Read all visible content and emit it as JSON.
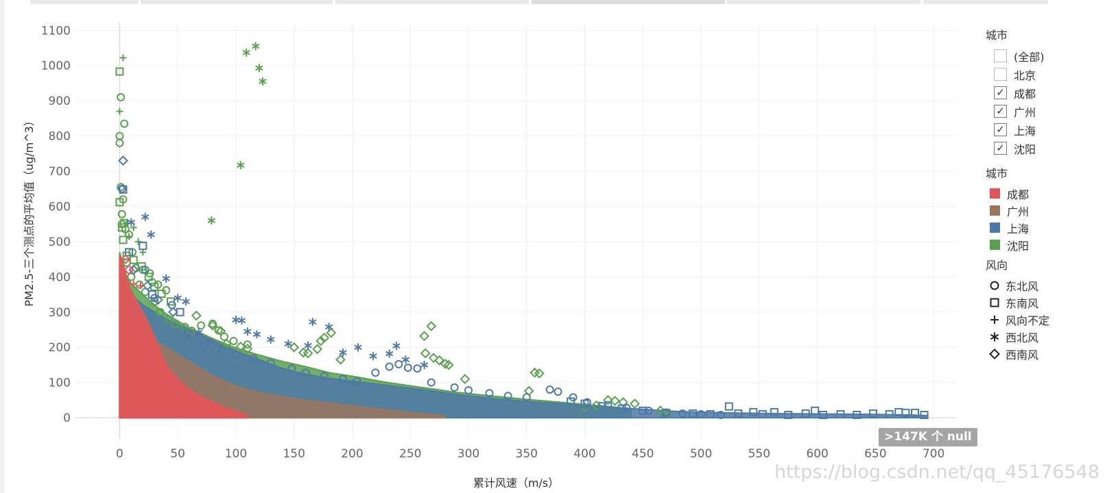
{
  "chart_data": {
    "type": "scatter",
    "title": "",
    "xlabel": "累计风速（m/s）",
    "ylabel": "PM2.5-三个测点的平均值（ug/m^3）",
    "xlim": [
      -38,
      720
    ],
    "ylim": [
      -62,
      1120
    ],
    "x_ticks": [
      0,
      50,
      100,
      150,
      200,
      250,
      300,
      350,
      400,
      450,
      500,
      550,
      600,
      650,
      700
    ],
    "y_ticks": [
      0,
      100,
      200,
      300,
      400,
      500,
      600,
      700,
      800,
      900,
      1000,
      1100
    ],
    "grid": true,
    "colors": {
      "成都": "#e15759",
      "广州": "#9c755f",
      "上海": "#4e79a7",
      "沈阳": "#59a14f"
    },
    "series": [
      {
        "name": "沈阳",
        "shape": "东北风",
        "points": [
          [
            1,
            910
          ],
          [
            4,
            835
          ],
          [
            0,
            800
          ],
          [
            0,
            780
          ],
          [
            1,
            655
          ],
          [
            3,
            620
          ],
          [
            2,
            578
          ],
          [
            2,
            550
          ],
          [
            5,
            535
          ],
          [
            8,
            520
          ],
          [
            11,
            470
          ],
          [
            14,
            425
          ],
          [
            20,
            420
          ],
          [
            26,
            410
          ],
          [
            28,
            385
          ],
          [
            33,
            378
          ],
          [
            40,
            362
          ],
          [
            6,
            440
          ],
          [
            10,
            400
          ],
          [
            17,
            378
          ],
          [
            22,
            357
          ],
          [
            30,
            330
          ],
          [
            35,
            300
          ],
          [
            42,
            280
          ],
          [
            48,
            265
          ],
          [
            56,
            258
          ],
          [
            62,
            247
          ],
          [
            70,
            262
          ],
          [
            80,
            267
          ],
          [
            85,
            248
          ],
          [
            90,
            230
          ],
          [
            98,
            218
          ],
          [
            110,
            208
          ]
        ]
      },
      {
        "name": "沈阳",
        "shape": "东南风",
        "points": [
          [
            0,
            983
          ],
          [
            0,
            612
          ],
          [
            4,
            553
          ],
          [
            2,
            540
          ],
          [
            3,
            505
          ],
          [
            6,
            460
          ],
          [
            12,
            448
          ],
          [
            19,
            430
          ],
          [
            25,
            400
          ],
          [
            30,
            372
          ],
          [
            36,
            352
          ],
          [
            44,
            330
          ]
        ]
      },
      {
        "name": "沈阳",
        "shape": "风向不定",
        "points": [
          [
            3,
            1022
          ],
          [
            0,
            870
          ],
          [
            6,
            552
          ],
          [
            12,
            540
          ],
          [
            8,
            515
          ],
          [
            16,
            500
          ],
          [
            20,
            470
          ]
        ]
      },
      {
        "name": "沈阳",
        "shape": "西北风",
        "points": [
          [
            109,
            1037
          ],
          [
            117,
            1055
          ],
          [
            120,
            993
          ],
          [
            123,
            955
          ],
          [
            104,
            717
          ],
          [
            79,
            560
          ]
        ]
      },
      {
        "name": "沈阳",
        "shape": "西南风",
        "points": [
          [
            66,
            290
          ],
          [
            80,
            262
          ],
          [
            87,
            246
          ],
          [
            92,
            210
          ],
          [
            104,
            202
          ],
          [
            110,
            196
          ],
          [
            150,
            200
          ],
          [
            158,
            185
          ],
          [
            162,
            183
          ],
          [
            170,
            195
          ],
          [
            173,
            218
          ],
          [
            176,
            227
          ],
          [
            182,
            241
          ],
          [
            190,
            165
          ],
          [
            262,
            232
          ],
          [
            268,
            260
          ],
          [
            263,
            183
          ],
          [
            270,
            170
          ],
          [
            275,
            163
          ],
          [
            280,
            153
          ],
          [
            283,
            150
          ],
          [
            297,
            110
          ],
          [
            352,
            76
          ],
          [
            357,
            128
          ],
          [
            361,
            126
          ],
          [
            420,
            50
          ],
          [
            426,
            48
          ],
          [
            433,
            44
          ],
          [
            443,
            40
          ],
          [
            465,
            20
          ],
          [
            472,
            12
          ],
          [
            400,
            30
          ],
          [
            410,
            35
          ]
        ]
      },
      {
        "name": "上海",
        "shape": "东北风",
        "points": [
          [
            2,
            650
          ],
          [
            22,
            420
          ],
          [
            30,
            340
          ],
          [
            45,
            320
          ],
          [
            58,
            240
          ],
          [
            72,
            205
          ],
          [
            88,
            192
          ],
          [
            100,
            178
          ],
          [
            115,
            168
          ],
          [
            130,
            155
          ],
          [
            148,
            140
          ],
          [
            160,
            128
          ],
          [
            176,
            118
          ],
          [
            192,
            110
          ],
          [
            204,
            104
          ],
          [
            220,
            128
          ],
          [
            232,
            145
          ],
          [
            240,
            152
          ],
          [
            248,
            142
          ],
          [
            256,
            140
          ],
          [
            268,
            100
          ],
          [
            288,
            86
          ],
          [
            300,
            78
          ],
          [
            318,
            70
          ],
          [
            334,
            62
          ],
          [
            350,
            58
          ],
          [
            370,
            80
          ],
          [
            377,
            74
          ],
          [
            390,
            58
          ],
          [
            402,
            44
          ],
          [
            420,
            36
          ],
          [
            436,
            28
          ],
          [
            455,
            20
          ],
          [
            470,
            15
          ],
          [
            484,
            12
          ],
          [
            500,
            10
          ],
          [
            517,
            8
          ]
        ]
      },
      {
        "name": "上海",
        "shape": "东南风",
        "points": [
          [
            3,
            648
          ],
          [
            20,
            488
          ],
          [
            8,
            470
          ],
          [
            28,
            350
          ],
          [
            52,
            300
          ],
          [
            388,
            46
          ],
          [
            400,
            40
          ],
          [
            415,
            33
          ],
          [
            432,
            26
          ],
          [
            450,
            20
          ],
          [
            470,
            14
          ],
          [
            493,
            12
          ],
          [
            508,
            10
          ],
          [
            524,
            32
          ],
          [
            532,
            12
          ],
          [
            545,
            16
          ],
          [
            553,
            10
          ],
          [
            563,
            16
          ],
          [
            575,
            8
          ],
          [
            590,
            12
          ],
          [
            598,
            20
          ],
          [
            605,
            8
          ],
          [
            620,
            10
          ],
          [
            634,
            8
          ],
          [
            648,
            12
          ],
          [
            662,
            10
          ],
          [
            670,
            16
          ],
          [
            676,
            14
          ],
          [
            684,
            14
          ],
          [
            692,
            8
          ]
        ]
      },
      {
        "name": "上海",
        "shape": "西北风",
        "points": [
          [
            10,
            555
          ],
          [
            22,
            570
          ],
          [
            27,
            520
          ],
          [
            40,
            395
          ],
          [
            50,
            340
          ],
          [
            57,
            330
          ],
          [
            68,
            242
          ],
          [
            78,
            215
          ],
          [
            100,
            278
          ],
          [
            105,
            276
          ],
          [
            110,
            245
          ],
          [
            118,
            237
          ],
          [
            130,
            222
          ],
          [
            145,
            210
          ],
          [
            162,
            205
          ],
          [
            166,
            272
          ],
          [
            180,
            258
          ],
          [
            192,
            185
          ],
          [
            205,
            200
          ],
          [
            218,
            175
          ],
          [
            232,
            182
          ],
          [
            238,
            204
          ],
          [
            246,
            165
          ],
          [
            262,
            150
          ]
        ]
      },
      {
        "name": "上海",
        "shape": "西南风",
        "points": [
          [
            3,
            730
          ],
          [
            12,
            420
          ],
          [
            24,
            375
          ],
          [
            33,
            335
          ],
          [
            46,
            300
          ]
        ]
      },
      {
        "name": "成都",
        "shape": "风向不定",
        "points": [
          [
            12,
            380
          ],
          [
            18,
            375
          ]
        ]
      },
      {
        "name": "成都",
        "shape": "西南风",
        "points": [
          [
            5,
            450
          ],
          [
            8,
            420
          ]
        ]
      }
    ],
    "envelopes": [
      {
        "name": "沈阳",
        "note": "dense cloud",
        "boundary_x": [
          0,
          5,
          10,
          20,
          30,
          40,
          60,
          80,
          100,
          120,
          140,
          160,
          180,
          200,
          230,
          260,
          290,
          320,
          350,
          380,
          400,
          420,
          440
        ],
        "boundary_y": [
          470,
          410,
          380,
          350,
          320,
          295,
          255,
          225,
          198,
          178,
          160,
          145,
          128,
          118,
          100,
          86,
          72,
          62,
          52,
          44,
          38,
          32,
          26
        ]
      },
      {
        "name": "上海",
        "note": "dense cloud",
        "boundary_x": [
          0,
          5,
          10,
          20,
          30,
          40,
          60,
          80,
          100,
          120,
          140,
          160,
          180,
          200,
          230,
          260,
          290,
          320,
          350,
          380,
          400,
          440,
          480,
          520,
          560,
          600,
          640,
          680,
          695
        ],
        "boundary_y": [
          440,
          390,
          350,
          320,
          300,
          280,
          250,
          220,
          190,
          165,
          140,
          124,
          112,
          104,
          92,
          80,
          66,
          55,
          46,
          40,
          34,
          26,
          18,
          14,
          12,
          11,
          10,
          8,
          6
        ]
      },
      {
        "name": "广州",
        "note": "dense cloud",
        "boundary_x": [
          0,
          5,
          10,
          20,
          30,
          40,
          60,
          80,
          100,
          120,
          140,
          160,
          180,
          200,
          230,
          260,
          280
        ],
        "boundary_y": [
          330,
          300,
          270,
          240,
          220,
          200,
          160,
          120,
          90,
          72,
          60,
          50,
          42,
          34,
          22,
          12,
          6
        ]
      },
      {
        "name": "成都",
        "note": "dense cloud",
        "boundary_x": [
          0,
          3,
          6,
          10,
          15,
          20,
          25,
          30,
          35,
          40,
          50,
          60,
          70,
          80,
          90,
          100,
          110
        ],
        "boundary_y": [
          460,
          440,
          400,
          360,
          330,
          300,
          270,
          230,
          190,
          150,
          110,
          80,
          60,
          45,
          30,
          18,
          8
        ]
      }
    ]
  },
  "legend_filter": {
    "title": "城市",
    "items": [
      {
        "label": "(全部)",
        "checked": false
      },
      {
        "label": "北京",
        "checked": false
      },
      {
        "label": "成都",
        "checked": true
      },
      {
        "label": "广州",
        "checked": true
      },
      {
        "label": "上海",
        "checked": true
      },
      {
        "label": "沈阳",
        "checked": true
      }
    ]
  },
  "legend_color": {
    "title": "城市",
    "items": [
      {
        "label": "成都",
        "color": "#e15759"
      },
      {
        "label": "广州",
        "color": "#9c755f"
      },
      {
        "label": "上海",
        "color": "#4e79a7"
      },
      {
        "label": "沈阳",
        "color": "#59a14f"
      }
    ]
  },
  "legend_shape": {
    "title": "风向",
    "items": [
      {
        "label": "东北风",
        "shape": "circle"
      },
      {
        "label": "东南风",
        "shape": "square"
      },
      {
        "label": "风向不定",
        "shape": "plus"
      },
      {
        "label": "西北风",
        "shape": "asterisk"
      },
      {
        "label": "西南风",
        "shape": "diamond"
      }
    ]
  },
  "null_badge": ">147K 个 null",
  "watermark": "https://blog.csdn.net/qq_45176548"
}
